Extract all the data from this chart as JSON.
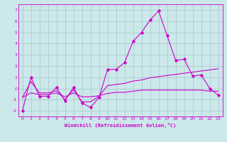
{
  "xlabel": "Windchill (Refroidissement éolien,°C)",
  "background_color": "#cce8ea",
  "grid_color": "#aacccc",
  "line_color": "#cc00cc",
  "x_values": [
    0,
    1,
    2,
    3,
    4,
    5,
    6,
    7,
    8,
    9,
    10,
    11,
    12,
    13,
    14,
    15,
    16,
    17,
    18,
    19,
    20,
    21,
    22,
    23
  ],
  "line1": [
    -2.0,
    1.0,
    -0.7,
    -0.7,
    0.1,
    -1.1,
    0.1,
    -1.3,
    -1.7,
    -0.8,
    1.7,
    1.7,
    2.3,
    4.2,
    5.0,
    6.1,
    6.9,
    4.7,
    2.5,
    2.6,
    1.1,
    1.2,
    0.0,
    -0.6
  ],
  "line2": [
    -0.8,
    0.6,
    -0.4,
    -0.4,
    -0.2,
    -1.0,
    -0.1,
    -1.2,
    -1.2,
    -0.7,
    0.25,
    0.35,
    0.45,
    0.65,
    0.75,
    0.95,
    1.05,
    1.15,
    1.25,
    1.35,
    1.45,
    1.55,
    1.65,
    1.75
  ],
  "line3": [
    -0.8,
    -0.4,
    -0.55,
    -0.55,
    -0.4,
    -0.75,
    -0.4,
    -0.75,
    -0.75,
    -0.65,
    -0.45,
    -0.35,
    -0.35,
    -0.25,
    -0.15,
    -0.15,
    -0.15,
    -0.15,
    -0.15,
    -0.15,
    -0.15,
    -0.15,
    -0.25,
    -0.25
  ],
  "ylim": [
    -2.5,
    7.5
  ],
  "xlim": [
    -0.5,
    23.5
  ],
  "yticks": [
    -2,
    -1,
    0,
    1,
    2,
    3,
    4,
    5,
    6,
    7
  ],
  "xticks": [
    0,
    1,
    2,
    3,
    4,
    5,
    6,
    7,
    8,
    9,
    10,
    11,
    12,
    13,
    14,
    15,
    16,
    17,
    18,
    19,
    20,
    21,
    22,
    23
  ]
}
